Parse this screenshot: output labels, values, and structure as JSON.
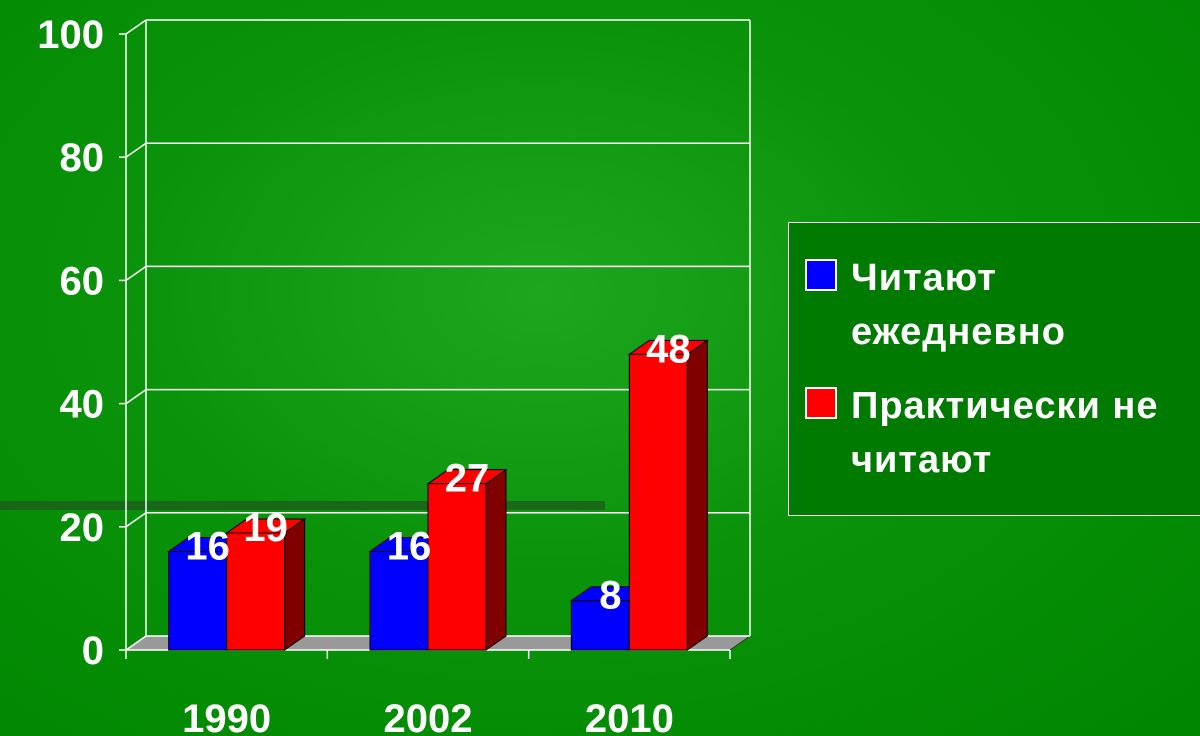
{
  "chart_data": {
    "type": "bar3d",
    "categories": [
      "1990",
      "2002",
      "2010"
    ],
    "series": [
      {
        "name": "Читают ежедневно",
        "color": "#0000ff",
        "side": "#000080",
        "values": [
          16,
          16,
          8
        ]
      },
      {
        "name": "Практически не читают",
        "color": "#ff0000",
        "side": "#800000",
        "values": [
          19,
          27,
          48
        ]
      }
    ],
    "ylim": [
      0,
      100
    ],
    "yticks": [
      0,
      20,
      40,
      60,
      80,
      100
    ],
    "grid": true,
    "legend": "right"
  }
}
